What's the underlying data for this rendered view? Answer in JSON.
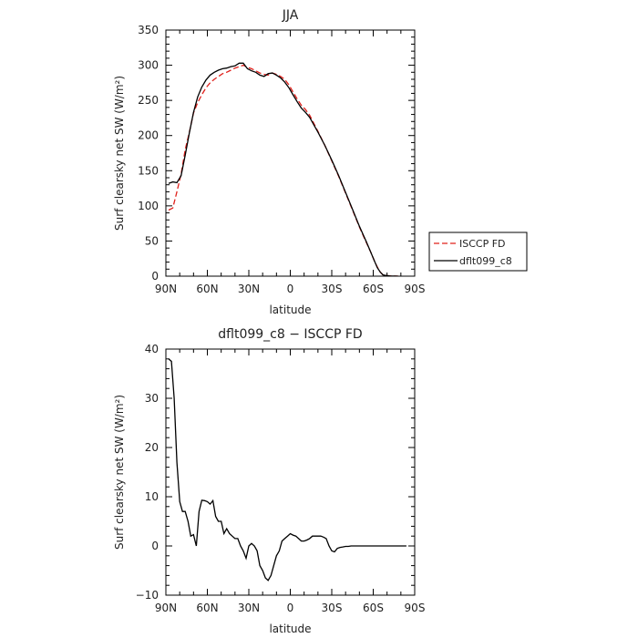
{
  "chart_data": [
    {
      "type": "line",
      "title": "JJA",
      "xlabel": "latitude",
      "ylabel": "Surf clearsky net SW (W/m²)",
      "xlim": [
        90,
        -90
      ],
      "ylim": [
        0,
        350
      ],
      "x_ticks": [
        90,
        60,
        30,
        0,
        -30,
        -60,
        -90
      ],
      "x_tick_labels": [
        "90N",
        "60N",
        "30N",
        "0",
        "30S",
        "60S",
        "90S"
      ],
      "y_ticks": [
        0,
        50,
        100,
        150,
        200,
        250,
        300,
        350
      ],
      "y_tick_labels": [
        "0",
        "50",
        "100",
        "150",
        "200",
        "250",
        "300",
        "350"
      ],
      "legend_position": "right",
      "series": [
        {
          "name": "ISCCP FD",
          "color": "#e0201b",
          "dash": "dashed",
          "x": [
            88,
            85,
            82,
            79,
            76,
            73,
            70,
            67,
            64,
            61,
            58,
            55,
            52,
            49,
            46,
            43,
            40,
            37,
            34,
            31,
            28,
            25,
            22,
            19,
            16,
            13,
            10,
            7,
            4,
            1,
            -2,
            -5,
            -8,
            -11,
            -14,
            -20,
            -25,
            -30,
            -35,
            -40,
            -45,
            -50,
            -55,
            -58,
            -61,
            -63,
            -65,
            -67,
            -69,
            -72,
            -75,
            -78
          ],
          "values": [
            94,
            97,
            120,
            145,
            180,
            205,
            232,
            247,
            258,
            268,
            275,
            280,
            284,
            288,
            290,
            293,
            296,
            298,
            300,
            297,
            295,
            292,
            289,
            287,
            286,
            289,
            287,
            284,
            280,
            272,
            262,
            252,
            243,
            237,
            229,
            206,
            186,
            164,
            142,
            118,
            94,
            70,
            48,
            35,
            21,
            13,
            6,
            2,
            1,
            0.3,
            0.1,
            0
          ]
        },
        {
          "name": "dflt099_c8",
          "color": "#000000",
          "dash": "solid",
          "x": [
            88,
            85,
            82,
            79,
            76,
            73,
            70,
            67,
            64,
            61,
            58,
            55,
            52,
            49,
            46,
            43,
            40,
            37,
            34,
            31,
            28,
            25,
            22,
            19,
            16,
            13,
            10,
            7,
            4,
            1,
            -2,
            -5,
            -8,
            -11,
            -14,
            -20,
            -25,
            -30,
            -35,
            -40,
            -45,
            -50,
            -55,
            -58,
            -61,
            -63,
            -65,
            -67,
            -69,
            -72,
            -75,
            -78
          ],
          "values": [
            132,
            134,
            133,
            143,
            172,
            204,
            233,
            255,
            269,
            279,
            286,
            290,
            293,
            295,
            296,
            298,
            299,
            303,
            303,
            295,
            292,
            290,
            286,
            284,
            288,
            289,
            286,
            282,
            276,
            268,
            258,
            248,
            239,
            233,
            226,
            205,
            186,
            165,
            143,
            119,
            95,
            71,
            49,
            35,
            21,
            12,
            6,
            2,
            1,
            0.3,
            0.1,
            0
          ]
        }
      ]
    },
    {
      "type": "line",
      "title": "dflt099_c8 − ISCCP FD",
      "xlabel": "latitude",
      "ylabel": "Surf clearsky net SW (W/m²)",
      "xlim": [
        90,
        -90
      ],
      "ylim": [
        -10,
        40
      ],
      "x_ticks": [
        90,
        60,
        30,
        0,
        -30,
        -60,
        -90
      ],
      "x_tick_labels": [
        "90N",
        "60N",
        "30N",
        "0",
        "30S",
        "60S",
        "90S"
      ],
      "y_ticks": [
        -10,
        0,
        10,
        20,
        30,
        40
      ],
      "y_tick_labels": [
        "−10",
        "0",
        "10",
        "20",
        "30",
        "40"
      ],
      "series": [
        {
          "color": "#000000",
          "dash": "solid",
          "x": [
            88,
            86,
            84,
            82,
            80,
            78,
            76,
            74,
            72,
            70,
            68,
            66,
            64,
            62,
            60,
            58,
            56,
            54,
            52,
            50,
            48,
            46,
            44,
            42,
            40,
            38,
            36,
            34,
            32,
            30,
            28,
            26,
            24,
            22,
            20,
            18,
            16,
            14,
            12,
            10,
            8,
            6,
            4,
            2,
            0,
            -2,
            -4,
            -6,
            -8,
            -10,
            -12,
            -14,
            -16,
            -18,
            -20,
            -22,
            -24,
            -26,
            -28,
            -30,
            -32,
            -34,
            -36,
            -38,
            -40,
            -42,
            -44,
            -46,
            -48,
            -50,
            -52,
            -54,
            -56,
            -58,
            -60,
            -62,
            -64,
            -66,
            -68,
            -70,
            -72,
            -74,
            -76,
            -78,
            -80,
            -82,
            -84
          ],
          "values": [
            38,
            37.5,
            30,
            17,
            9,
            7,
            7,
            5,
            2,
            2.3,
            0,
            7,
            9.3,
            9.2,
            9,
            8.5,
            9.2,
            6,
            5,
            5,
            2.5,
            3.5,
            2.5,
            2,
            1.5,
            1.5,
            0,
            -1,
            -2.5,
            0,
            0.5,
            0,
            -1,
            -4,
            -5,
            -6.5,
            -7,
            -6,
            -4,
            -2,
            -1,
            1,
            1.5,
            2,
            2.5,
            2.2,
            2,
            1.5,
            1,
            1,
            1.2,
            1.5,
            2,
            2,
            2,
            2,
            1.8,
            1.5,
            0,
            -1,
            -1.2,
            -0.5,
            -0.3,
            -0.2,
            -0.1,
            -0.1,
            0,
            0,
            0,
            0,
            0,
            0,
            0,
            0,
            0,
            0,
            0,
            0,
            0,
            0,
            0,
            0,
            0,
            0,
            0,
            0,
            0
          ]
        }
      ]
    }
  ]
}
